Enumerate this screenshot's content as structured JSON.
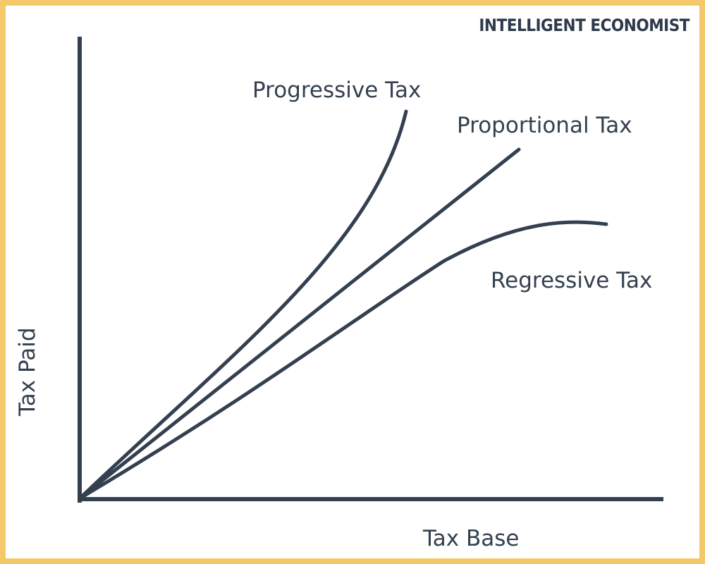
{
  "brand": "INTELLIGENT ECONOMIST",
  "colors": {
    "border": "#f5c96a",
    "ink": "#34404f"
  },
  "diagram": {
    "y_axis_label": "Tax Paid",
    "x_axis_label": "Tax Base",
    "curves": [
      {
        "id": "progressive",
        "label": "Progressive Tax",
        "shape": "convex"
      },
      {
        "id": "proportional",
        "label": "Proportional Tax",
        "shape": "linear"
      },
      {
        "id": "regressive",
        "label": "Regressive Tax",
        "shape": "concave"
      }
    ]
  }
}
